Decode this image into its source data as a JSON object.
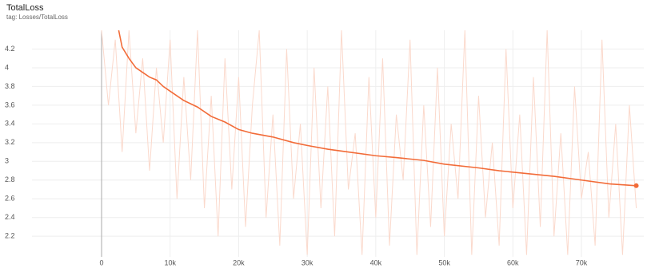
{
  "chart_data": {
    "type": "line",
    "title": "TotalLoss",
    "subtitle": "tag: Losses/TotalLoss",
    "xlim": [
      -10150,
      79100
    ],
    "ylim": [
      1.98,
      4.4
    ],
    "xticks": [
      0,
      {
        "value": 10000,
        "label": "10k"
      },
      {
        "value": 20000,
        "label": "20k"
      },
      {
        "value": 30000,
        "label": "30k"
      },
      {
        "value": 40000,
        "label": "40k"
      },
      {
        "value": 50000,
        "label": "50k"
      },
      {
        "value": 60000,
        "label": "60k"
      },
      {
        "value": 70000,
        "label": "70k"
      }
    ],
    "yticks": [
      2.2,
      2.4,
      2.6,
      2.8,
      3,
      3.2,
      3.4,
      3.6,
      3.8,
      4,
      4.2
    ],
    "grid": true,
    "series": [
      {
        "color": "#fbd9cc",
        "x": [
          0,
          1000,
          2000,
          3000,
          4000,
          5000,
          6000,
          7000,
          8000,
          9000,
          10000,
          11000,
          12000,
          13000,
          14000,
          15000,
          16000,
          17000,
          18000,
          19000,
          20000,
          21000,
          22000,
          23000,
          24000,
          25000,
          26000,
          27000,
          28000,
          29000,
          30000,
          31000,
          32000,
          33000,
          34000,
          35000,
          36000,
          37000,
          38000,
          39000,
          40000,
          41000,
          42000,
          43000,
          44000,
          45000,
          46000,
          47000,
          48000,
          49000,
          50000,
          51000,
          52000,
          53000,
          54000,
          55000,
          56000,
          57000,
          58000,
          59000,
          60000,
          61000,
          62000,
          63000,
          64000,
          65000,
          66000,
          67000,
          68000,
          69000,
          70000,
          71000,
          72000,
          73000,
          74000,
          75000,
          76000,
          77000,
          78000
        ],
        "values": [
          4.4,
          3.6,
          4.3,
          3.1,
          4.4,
          3.3,
          4.1,
          2.9,
          4.0,
          3.2,
          4.3,
          2.6,
          3.9,
          2.8,
          4.4,
          2.5,
          3.7,
          2.2,
          4.1,
          2.7,
          3.9,
          2.3,
          3.6,
          4.4,
          2.4,
          3.5,
          2.1,
          4.2,
          2.6,
          3.4,
          2.0,
          4.0,
          2.5,
          3.8,
          2.2,
          4.4,
          2.7,
          3.3,
          2.0,
          3.9,
          2.4,
          4.1,
          2.1,
          3.5,
          2.8,
          4.3,
          2.0,
          3.6,
          2.3,
          4.0,
          2.2,
          3.4,
          2.6,
          4.4,
          2.0,
          3.7,
          2.4,
          3.2,
          2.1,
          4.2,
          2.5,
          3.5,
          2.0,
          3.9,
          2.3,
          4.4,
          2.2,
          3.3,
          2.0,
          3.8,
          2.6,
          3.1,
          2.1,
          4.3,
          2.4,
          3.4,
          2.0,
          3.6,
          2.5
        ]
      },
      {
        "color": "#f26b38",
        "x": [
          2500,
          3000,
          4000,
          5000,
          6000,
          7000,
          8000,
          9000,
          10000,
          12000,
          14000,
          16000,
          18000,
          20000,
          22000,
          25000,
          28000,
          30000,
          33000,
          36000,
          40000,
          43000,
          47000,
          50000,
          55000,
          58000,
          62000,
          66000,
          70000,
          74000,
          78000
        ],
        "values": [
          4.4,
          4.22,
          4.1,
          4.0,
          3.95,
          3.9,
          3.87,
          3.8,
          3.75,
          3.65,
          3.58,
          3.48,
          3.42,
          3.34,
          3.3,
          3.26,
          3.2,
          3.17,
          3.13,
          3.1,
          3.06,
          3.04,
          3.01,
          2.97,
          2.93,
          2.9,
          2.87,
          2.84,
          2.8,
          2.76,
          2.74
        ]
      }
    ]
  }
}
